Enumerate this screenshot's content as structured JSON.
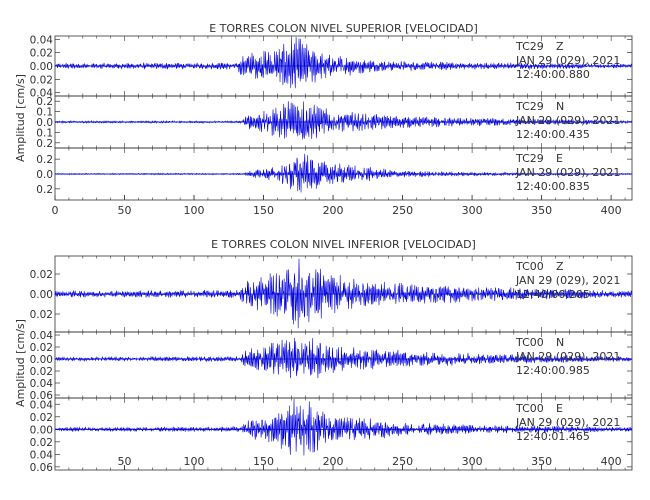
{
  "chart_data": [
    {
      "type": "line",
      "title": "E TORRES COLON NIVEL SUPERIOR [VELOCIDAD]",
      "ylabel": "Amplitud [cm/s]",
      "xlim": [
        0,
        415
      ],
      "xticks": [
        0,
        50,
        100,
        150,
        200,
        250,
        300,
        350,
        400
      ],
      "grid": false,
      "traces": [
        {
          "station": "TC29",
          "component": "Z",
          "date": "JAN 29 (029), 2021",
          "time": "12:40:00.880",
          "ylim": [
            -0.045,
            0.045
          ],
          "yticks": [
            0.04,
            0.02,
            0.0,
            -0.02,
            -0.04
          ],
          "ytick_labels": [
            "0.04",
            "0.02",
            "0.00",
            "0.02",
            "0.04"
          ],
          "envelope": [
            [
              0,
              0.004
            ],
            [
              130,
              0.005
            ],
            [
              135,
              0.018
            ],
            [
              160,
              0.025
            ],
            [
              172,
              0.045
            ],
            [
              190,
              0.02
            ],
            [
              230,
              0.008
            ],
            [
              300,
              0.005
            ],
            [
              415,
              0.003
            ]
          ]
        },
        {
          "station": "TC29",
          "component": "N",
          "date": "JAN 29 (029), 2021",
          "time": "12:40:00.435",
          "ylim": [
            -0.25,
            0.25
          ],
          "yticks": [
            0.2,
            0.1,
            0.0,
            -0.1,
            -0.2
          ],
          "ytick_labels": [
            "0.2",
            "0.1",
            "0.0",
            "0.1",
            "0.2"
          ],
          "envelope": [
            [
              0,
              0.01
            ],
            [
              133,
              0.01
            ],
            [
              138,
              0.07
            ],
            [
              155,
              0.12
            ],
            [
              172,
              0.24
            ],
            [
              200,
              0.1
            ],
            [
              260,
              0.05
            ],
            [
              340,
              0.03
            ],
            [
              415,
              0.01
            ]
          ]
        },
        {
          "station": "TC29",
          "component": "E",
          "date": "JAN 29 (029), 2021",
          "time": "12:40:00.835",
          "ylim": [
            -0.35,
            0.35
          ],
          "yticks": [
            0.2,
            0.0,
            -0.2
          ],
          "ytick_labels": [
            "0.2",
            "0.0",
            "0.2"
          ],
          "envelope": [
            [
              0,
              0.008
            ],
            [
              135,
              0.01
            ],
            [
              140,
              0.04
            ],
            [
              160,
              0.1
            ],
            [
              175,
              0.3
            ],
            [
              195,
              0.15
            ],
            [
              250,
              0.04
            ],
            [
              340,
              0.015
            ],
            [
              415,
              0.008
            ]
          ]
        }
      ]
    },
    {
      "type": "line",
      "title": "E TORRES COLON NIVEL INFERIOR [VELOCIDAD]",
      "ylabel": "Amplitud [cm/s]",
      "xlim": [
        0,
        415
      ],
      "xticks": [
        50,
        100,
        150,
        200,
        250,
        300,
        350,
        400
      ],
      "grid": false,
      "traces": [
        {
          "station": "TC00",
          "component": "Z",
          "date": "JAN 29 (029), 2021",
          "time": "12:40:00.205",
          "ylim": [
            -0.038,
            0.038
          ],
          "yticks": [
            0.02,
            0.0,
            -0.02
          ],
          "ytick_labels": [
            "0.02",
            "0.00",
            "0.02"
          ],
          "envelope": [
            [
              0,
              0.003
            ],
            [
              133,
              0.004
            ],
            [
              137,
              0.015
            ],
            [
              160,
              0.022
            ],
            [
              175,
              0.036
            ],
            [
              200,
              0.018
            ],
            [
              250,
              0.01
            ],
            [
              330,
              0.006
            ],
            [
              415,
              0.003
            ]
          ]
        },
        {
          "station": "TC00",
          "component": "N",
          "date": "JAN 29 (029), 2021",
          "time": "12:40:00.985",
          "ylim": [
            -0.065,
            0.045
          ],
          "yticks": [
            0.04,
            0.02,
            0.0,
            -0.02,
            -0.04,
            -0.06
          ],
          "ytick_labels": [
            "0.04",
            "0.02",
            "0.00",
            "0.02",
            "0.04",
            "0.06"
          ],
          "envelope": [
            [
              0,
              0.003
            ],
            [
              133,
              0.004
            ],
            [
              137,
              0.015
            ],
            [
              165,
              0.03
            ],
            [
              175,
              0.04
            ],
            [
              205,
              0.02
            ],
            [
              260,
              0.012
            ],
            [
              340,
              0.007
            ],
            [
              415,
              0.004
            ]
          ]
        },
        {
          "station": "TC00",
          "component": "E",
          "date": "JAN 29 (029), 2021",
          "time": "12:40:01.465",
          "ylim": [
            -0.065,
            0.05
          ],
          "yticks": [
            0.04,
            0.02,
            0.0,
            -0.02,
            -0.04,
            -0.06
          ],
          "ytick_labels": [
            "0.04",
            "0.02",
            "0.00",
            "0.02",
            "0.04",
            "0.06"
          ],
          "envelope": [
            [
              0,
              0.003
            ],
            [
              133,
              0.004
            ],
            [
              137,
              0.012
            ],
            [
              160,
              0.025
            ],
            [
              172,
              0.055
            ],
            [
              195,
              0.025
            ],
            [
              250,
              0.01
            ],
            [
              330,
              0.006
            ],
            [
              415,
              0.003
            ]
          ]
        }
      ]
    }
  ],
  "colors": {
    "trace": "#0000dd",
    "axis": "#333333",
    "text": "#333333",
    "background": "#ffffff"
  }
}
